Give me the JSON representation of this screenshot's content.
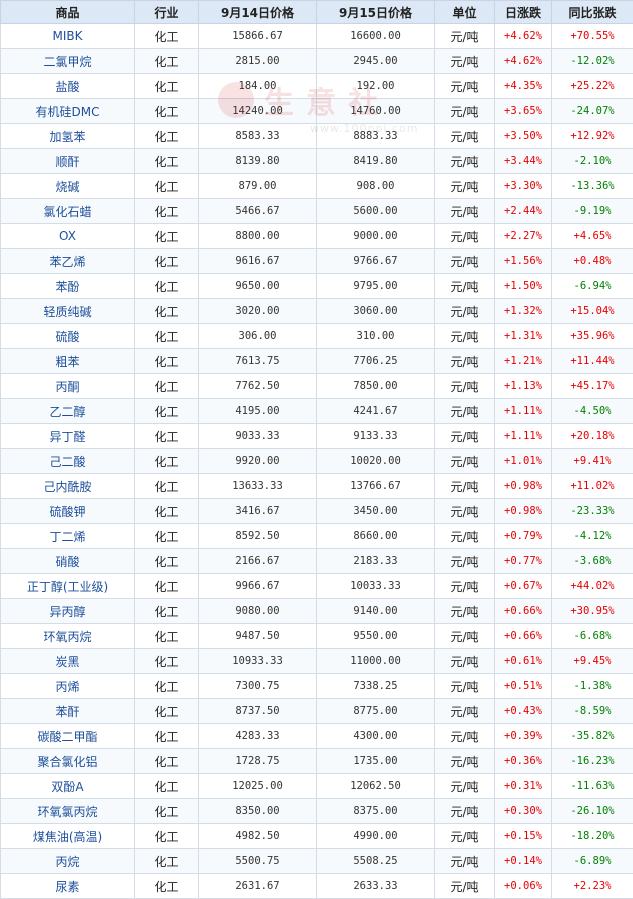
{
  "headers": [
    "商品",
    "行业",
    "9月14日价格",
    "9月15日价格",
    "单位",
    "日涨跌",
    "同比张跌"
  ],
  "watermark": {
    "text": "生意社",
    "url": "www.100ppi.com"
  },
  "rows": [
    {
      "name": "MIBK",
      "industry": "化工",
      "p1": "15866.67",
      "p2": "16600.00",
      "unit": "元/吨",
      "daily": "+4.62%",
      "yoy": "+70.55%"
    },
    {
      "name": "二氯甲烷",
      "industry": "化工",
      "p1": "2815.00",
      "p2": "2945.00",
      "unit": "元/吨",
      "daily": "+4.62%",
      "yoy": "-12.02%"
    },
    {
      "name": "盐酸",
      "industry": "化工",
      "p1": "184.00",
      "p2": "192.00",
      "unit": "元/吨",
      "daily": "+4.35%",
      "yoy": "+25.22%"
    },
    {
      "name": "有机硅DMC",
      "industry": "化工",
      "p1": "14240.00",
      "p2": "14760.00",
      "unit": "元/吨",
      "daily": "+3.65%",
      "yoy": "-24.07%"
    },
    {
      "name": "加氢苯",
      "industry": "化工",
      "p1": "8583.33",
      "p2": "8883.33",
      "unit": "元/吨",
      "daily": "+3.50%",
      "yoy": "+12.92%"
    },
    {
      "name": "顺酐",
      "industry": "化工",
      "p1": "8139.80",
      "p2": "8419.80",
      "unit": "元/吨",
      "daily": "+3.44%",
      "yoy": "-2.10%"
    },
    {
      "name": "烧碱",
      "industry": "化工",
      "p1": "879.00",
      "p2": "908.00",
      "unit": "元/吨",
      "daily": "+3.30%",
      "yoy": "-13.36%"
    },
    {
      "name": "氯化石蜡",
      "industry": "化工",
      "p1": "5466.67",
      "p2": "5600.00",
      "unit": "元/吨",
      "daily": "+2.44%",
      "yoy": "-9.19%"
    },
    {
      "name": "OX",
      "industry": "化工",
      "p1": "8800.00",
      "p2": "9000.00",
      "unit": "元/吨",
      "daily": "+2.27%",
      "yoy": "+4.65%"
    },
    {
      "name": "苯乙烯",
      "industry": "化工",
      "p1": "9616.67",
      "p2": "9766.67",
      "unit": "元/吨",
      "daily": "+1.56%",
      "yoy": "+0.48%"
    },
    {
      "name": "苯酚",
      "industry": "化工",
      "p1": "9650.00",
      "p2": "9795.00",
      "unit": "元/吨",
      "daily": "+1.50%",
      "yoy": "-6.94%"
    },
    {
      "name": "轻质纯碱",
      "industry": "化工",
      "p1": "3020.00",
      "p2": "3060.00",
      "unit": "元/吨",
      "daily": "+1.32%",
      "yoy": "+15.04%"
    },
    {
      "name": "硫酸",
      "industry": "化工",
      "p1": "306.00",
      "p2": "310.00",
      "unit": "元/吨",
      "daily": "+1.31%",
      "yoy": "+35.96%"
    },
    {
      "name": "粗苯",
      "industry": "化工",
      "p1": "7613.75",
      "p2": "7706.25",
      "unit": "元/吨",
      "daily": "+1.21%",
      "yoy": "+11.44%"
    },
    {
      "name": "丙酮",
      "industry": "化工",
      "p1": "7762.50",
      "p2": "7850.00",
      "unit": "元/吨",
      "daily": "+1.13%",
      "yoy": "+45.17%"
    },
    {
      "name": "乙二醇",
      "industry": "化工",
      "p1": "4195.00",
      "p2": "4241.67",
      "unit": "元/吨",
      "daily": "+1.11%",
      "yoy": "-4.50%"
    },
    {
      "name": "异丁醛",
      "industry": "化工",
      "p1": "9033.33",
      "p2": "9133.33",
      "unit": "元/吨",
      "daily": "+1.11%",
      "yoy": "+20.18%"
    },
    {
      "name": "己二酸",
      "industry": "化工",
      "p1": "9920.00",
      "p2": "10020.00",
      "unit": "元/吨",
      "daily": "+1.01%",
      "yoy": "+9.41%"
    },
    {
      "name": "己内酰胺",
      "industry": "化工",
      "p1": "13633.33",
      "p2": "13766.67",
      "unit": "元/吨",
      "daily": "+0.98%",
      "yoy": "+11.02%"
    },
    {
      "name": "硫酸钾",
      "industry": "化工",
      "p1": "3416.67",
      "p2": "3450.00",
      "unit": "元/吨",
      "daily": "+0.98%",
      "yoy": "-23.33%"
    },
    {
      "name": "丁二烯",
      "industry": "化工",
      "p1": "8592.50",
      "p2": "8660.00",
      "unit": "元/吨",
      "daily": "+0.79%",
      "yoy": "-4.12%"
    },
    {
      "name": "硝酸",
      "industry": "化工",
      "p1": "2166.67",
      "p2": "2183.33",
      "unit": "元/吨",
      "daily": "+0.77%",
      "yoy": "-3.68%"
    },
    {
      "name": "正丁醇(工业级)",
      "industry": "化工",
      "p1": "9966.67",
      "p2": "10033.33",
      "unit": "元/吨",
      "daily": "+0.67%",
      "yoy": "+44.02%"
    },
    {
      "name": "异丙醇",
      "industry": "化工",
      "p1": "9080.00",
      "p2": "9140.00",
      "unit": "元/吨",
      "daily": "+0.66%",
      "yoy": "+30.95%"
    },
    {
      "name": "环氧丙烷",
      "industry": "化工",
      "p1": "9487.50",
      "p2": "9550.00",
      "unit": "元/吨",
      "daily": "+0.66%",
      "yoy": "-6.68%"
    },
    {
      "name": "炭黑",
      "industry": "化工",
      "p1": "10933.33",
      "p2": "11000.00",
      "unit": "元/吨",
      "daily": "+0.61%",
      "yoy": "+9.45%"
    },
    {
      "name": "丙烯",
      "industry": "化工",
      "p1": "7300.75",
      "p2": "7338.25",
      "unit": "元/吨",
      "daily": "+0.51%",
      "yoy": "-1.38%"
    },
    {
      "name": "苯酐",
      "industry": "化工",
      "p1": "8737.50",
      "p2": "8775.00",
      "unit": "元/吨",
      "daily": "+0.43%",
      "yoy": "-8.59%"
    },
    {
      "name": "碳酸二甲酯",
      "industry": "化工",
      "p1": "4283.33",
      "p2": "4300.00",
      "unit": "元/吨",
      "daily": "+0.39%",
      "yoy": "-35.82%"
    },
    {
      "name": "聚合氯化铝",
      "industry": "化工",
      "p1": "1728.75",
      "p2": "1735.00",
      "unit": "元/吨",
      "daily": "+0.36%",
      "yoy": "-16.23%"
    },
    {
      "name": "双酚A",
      "industry": "化工",
      "p1": "12025.00",
      "p2": "12062.50",
      "unit": "元/吨",
      "daily": "+0.31%",
      "yoy": "-11.63%"
    },
    {
      "name": "环氧氯丙烷",
      "industry": "化工",
      "p1": "8350.00",
      "p2": "8375.00",
      "unit": "元/吨",
      "daily": "+0.30%",
      "yoy": "-26.10%"
    },
    {
      "name": "煤焦油(高温)",
      "industry": "化工",
      "p1": "4982.50",
      "p2": "4990.00",
      "unit": "元/吨",
      "daily": "+0.15%",
      "yoy": "-18.20%"
    },
    {
      "name": "丙烷",
      "industry": "化工",
      "p1": "5500.75",
      "p2": "5508.25",
      "unit": "元/吨",
      "daily": "+0.14%",
      "yoy": "-6.89%"
    },
    {
      "name": "尿素",
      "industry": "化工",
      "p1": "2631.67",
      "p2": "2633.33",
      "unit": "元/吨",
      "daily": "+0.06%",
      "yoy": "+2.23%"
    }
  ],
  "colors": {
    "up": "#e60000",
    "down": "#008000",
    "name": "#1d4f9a",
    "header_bg": "#dce8f5"
  }
}
